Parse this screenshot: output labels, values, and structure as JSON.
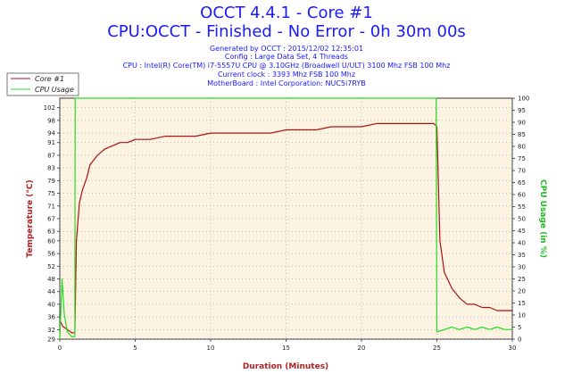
{
  "title": "OCCT 4.4.1 - Core #1",
  "subtitle": "CPU:OCCT - Finished - No Error - 0h 30m 00s",
  "info_lines": [
    "Generated by OCCT : 2015/12/02 12:35:01",
    "Config : Large Data Set, 4 Threads",
    "CPU : Intel(R) Core(TM) i7-5557U CPU @ 3.10GHz (Broadwell U/ULT) 3100 Mhz FSB 100 Mhz",
    "Current clock : 3393 Mhz FSB 100 Mhz",
    "MotherBoard : Intel Corporation: NUC5i7RYB"
  ],
  "colors": {
    "title": "#1a1aff",
    "temperature": "#aa1111",
    "cpu_usage": "#22dd22",
    "plot_bg": "#fdf3e3",
    "grid": "#888888"
  },
  "chart_data": {
    "type": "line",
    "xlabel": "Duration (Minutes)",
    "ylabel_left": "Temperature (°C)",
    "ylabel_right": "CPU Usage (in %)",
    "xlim": [
      0,
      30
    ],
    "ylim_left": [
      29,
      105
    ],
    "ylim_right": [
      0,
      100
    ],
    "x_ticks": [
      0,
      5,
      10,
      15,
      20,
      25,
      30
    ],
    "y_ticks_left": [
      29,
      32,
      36,
      40,
      44,
      48,
      52,
      56,
      60,
      63,
      67,
      71,
      75,
      79,
      83,
      87,
      91,
      94,
      98,
      102
    ],
    "y_ticks_right": [
      0,
      5,
      10,
      15,
      20,
      25,
      30,
      35,
      40,
      45,
      50,
      55,
      60,
      65,
      70,
      75,
      80,
      85,
      90,
      95,
      100
    ],
    "grid": true,
    "legend_position": "top-left",
    "series": [
      {
        "name": "Core #1",
        "axis": "left",
        "x": [
          0,
          0.2,
          0.5,
          0.8,
          1.0,
          1.1,
          1.3,
          1.5,
          1.8,
          2.0,
          2.5,
          3.0,
          3.5,
          4.0,
          4.5,
          5,
          6,
          7,
          8,
          9,
          10,
          11,
          12,
          13,
          14,
          15,
          16,
          17,
          18,
          19,
          20,
          21,
          22,
          23,
          24,
          24.8,
          25.0,
          25.2,
          25.5,
          26.0,
          26.5,
          27,
          27.5,
          28,
          28.5,
          29,
          29.5,
          30
        ],
        "y": [
          35,
          33,
          32,
          31,
          31,
          60,
          72,
          76,
          80,
          84,
          87,
          89,
          90,
          91,
          91,
          92,
          92,
          93,
          93,
          93,
          94,
          94,
          94,
          94,
          94,
          95,
          95,
          95,
          96,
          96,
          96,
          97,
          97,
          97,
          97,
          97,
          96,
          60,
          50,
          45,
          42,
          40,
          40,
          39,
          39,
          38,
          38,
          38
        ]
      },
      {
        "name": "CPU Usage",
        "axis": "right",
        "x": [
          0,
          0.15,
          0.3,
          0.5,
          0.8,
          1.0,
          1.02,
          2,
          5,
          10,
          15,
          20,
          24.8,
          24.95,
          25.0,
          25.5,
          26,
          26.5,
          27,
          27.5,
          28,
          28.5,
          29,
          29.5,
          30
        ],
        "y": [
          0,
          25,
          10,
          3,
          1,
          1,
          100,
          100,
          100,
          100,
          100,
          100,
          100,
          100,
          3,
          4,
          5,
          4,
          5,
          4,
          5,
          4,
          5,
          4,
          4
        ]
      }
    ]
  }
}
